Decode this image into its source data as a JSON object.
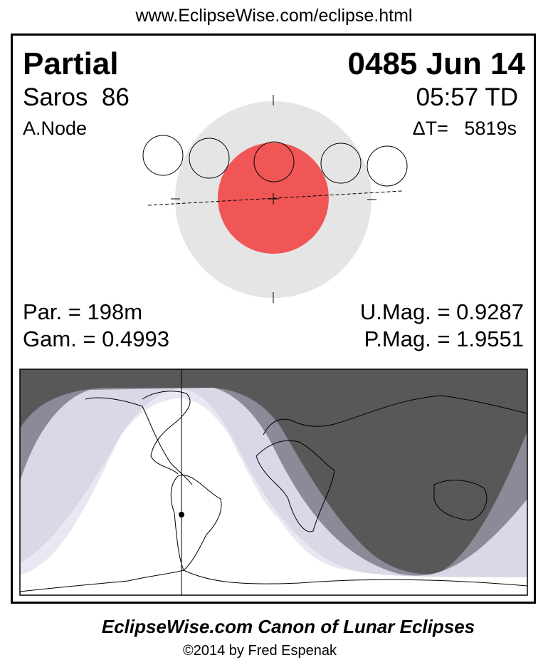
{
  "header": {
    "url": "www.EclipseWise.com/eclipse.html"
  },
  "eclipse": {
    "type": "Partial",
    "date": "0485 Jun 14",
    "saros": "Saros  86",
    "time": "05:57 TD",
    "node": "A.Node",
    "delta_t": "ΔT=   5819s",
    "partial_duration": "Par. = 198m",
    "gamma": "Gam. = 0.4993",
    "umbral_magnitude": "U.Mag. = 0.9287",
    "penumbral_magnitude": "P.Mag. = 1.9551"
  },
  "colors": {
    "penumbra": "#e5e5e5",
    "umbra": "#f05656",
    "night": "#585858",
    "penumbral_band": "#8a8a98",
    "partial_band": "#d8d8e6",
    "partial_inner": "#e8e8f2",
    "full_visibility": "#ffffff"
  },
  "footer": {
    "title": "EclipseWise.com Canon of Lunar Eclipses",
    "copyright": "©2014 by Fred Espenak"
  }
}
